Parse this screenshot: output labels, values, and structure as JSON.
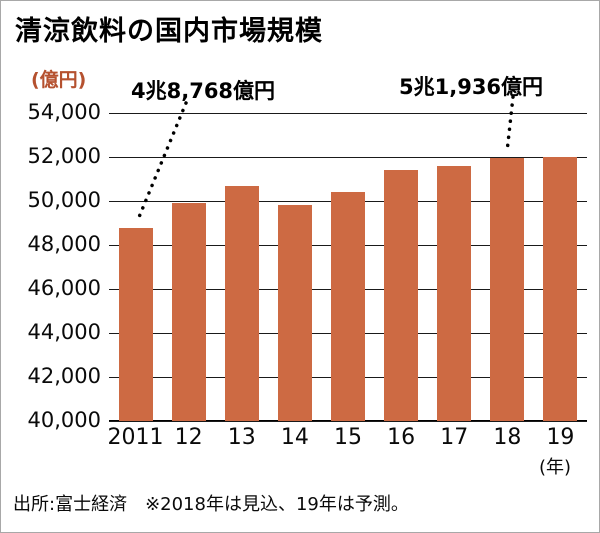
{
  "title": "清涼飲料の国内市場規模",
  "y_axis_unit": "(億円)",
  "x_axis_unit": "(年)",
  "source_note": "出所:富士経済　※2018年は見込、19年は予測。",
  "annotations": {
    "first": "4兆8,768億円",
    "last": "5兆1,936億円"
  },
  "colors": {
    "bar": "#cd6a43",
    "grid": "#1a1a1a",
    "unit_label": "#b5512f"
  },
  "chart_data": {
    "type": "bar",
    "title": "清涼飲料の国内市場規模",
    "categories": [
      "2011",
      "12",
      "13",
      "14",
      "15",
      "16",
      "17",
      "18",
      "19"
    ],
    "values": [
      48768,
      49900,
      50700,
      49800,
      50400,
      51400,
      51600,
      51936,
      52000
    ],
    "xlabel": "(年)",
    "ylabel": "(億円)",
    "ylim": [
      40000,
      54000
    ],
    "ytick_step": 2000,
    "grid": true,
    "legend": false,
    "annotations": [
      {
        "category": "2011",
        "value": 48768,
        "label": "4兆8,768億円"
      },
      {
        "category": "18",
        "value": 51936,
        "label": "5兆1,936億円"
      }
    ]
  }
}
